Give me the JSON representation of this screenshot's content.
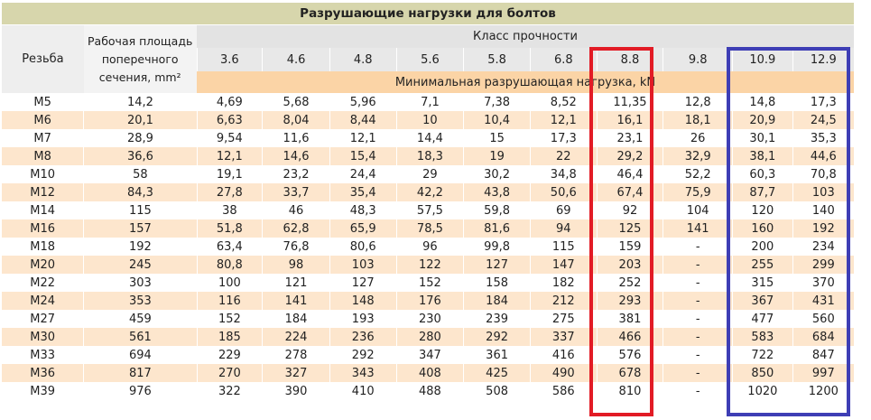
{
  "title": "Разрушающие нагрузки для болтов",
  "header": {
    "thread_label": "Резьба",
    "area_label": "Рабочая площадь поперечного сечения, mm²",
    "class_label": "Класс прочности",
    "classes": [
      "3.6",
      "4.6",
      "4.8",
      "5.6",
      "5.8",
      "6.8",
      "8.8",
      "9.8",
      "10.9",
      "12.9"
    ],
    "sub_label": "Минимальная разрушающая нагрузка, kN"
  },
  "rows": [
    [
      "M5",
      "14,2",
      "4,69",
      "5,68",
      "5,96",
      "7,1",
      "7,38",
      "8,52",
      "11,35",
      "12,8",
      "14,8",
      "17,3"
    ],
    [
      "M6",
      "20,1",
      "6,63",
      "8,04",
      "8,44",
      "10",
      "10,4",
      "12,1",
      "16,1",
      "18,1",
      "20,9",
      "24,5"
    ],
    [
      "M7",
      "28,9",
      "9,54",
      "11,6",
      "12,1",
      "14,4",
      "15",
      "17,3",
      "23,1",
      "26",
      "30,1",
      "35,3"
    ],
    [
      "M8",
      "36,6",
      "12,1",
      "14,6",
      "15,4",
      "18,3",
      "19",
      "22",
      "29,2",
      "32,9",
      "38,1",
      "44,6"
    ],
    [
      "M10",
      "58",
      "19,1",
      "23,2",
      "24,4",
      "29",
      "30,2",
      "34,8",
      "46,4",
      "52,2",
      "60,3",
      "70,8"
    ],
    [
      "M12",
      "84,3",
      "27,8",
      "33,7",
      "35,4",
      "42,2",
      "43,8",
      "50,6",
      "67,4",
      "75,9",
      "87,7",
      "103"
    ],
    [
      "M14",
      "115",
      "38",
      "46",
      "48,3",
      "57,5",
      "59,8",
      "69",
      "92",
      "104",
      "120",
      "140"
    ],
    [
      "M16",
      "157",
      "51,8",
      "62,8",
      "65,9",
      "78,5",
      "81,6",
      "94",
      "125",
      "141",
      "160",
      "192"
    ],
    [
      "M18",
      "192",
      "63,4",
      "76,8",
      "80,6",
      "96",
      "99,8",
      "115",
      "159",
      "-",
      "200",
      "234"
    ],
    [
      "M20",
      "245",
      "80,8",
      "98",
      "103",
      "122",
      "127",
      "147",
      "203",
      "-",
      "255",
      "299"
    ],
    [
      "M22",
      "303",
      "100",
      "121",
      "127",
      "152",
      "158",
      "182",
      "252",
      "-",
      "315",
      "370"
    ],
    [
      "M24",
      "353",
      "116",
      "141",
      "148",
      "176",
      "184",
      "212",
      "293",
      "-",
      "367",
      "431"
    ],
    [
      "M27",
      "459",
      "152",
      "184",
      "193",
      "230",
      "239",
      "275",
      "381",
      "-",
      "477",
      "560"
    ],
    [
      "M30",
      "561",
      "185",
      "224",
      "236",
      "280",
      "292",
      "337",
      "466",
      "-",
      "583",
      "684"
    ],
    [
      "M33",
      "694",
      "229",
      "278",
      "292",
      "347",
      "361",
      "416",
      "576",
      "-",
      "722",
      "847"
    ],
    [
      "M36",
      "817",
      "270",
      "327",
      "343",
      "408",
      "425",
      "490",
      "678",
      "-",
      "850",
      "997"
    ],
    [
      "M39",
      "976",
      "322",
      "390",
      "410",
      "488",
      "508",
      "586",
      "810",
      "-",
      "1020",
      "1200"
    ]
  ],
  "highlights": {
    "red_color": "#e21b25",
    "blue_color": "#3e3eb5"
  }
}
